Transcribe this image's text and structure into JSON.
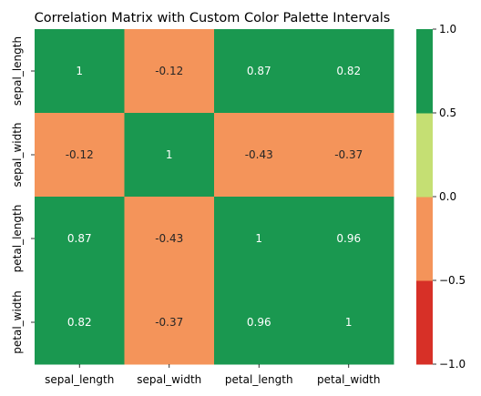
{
  "chart_data": {
    "type": "heatmap",
    "title": "Correlation Matrix with Custom Color Palette Intervals",
    "rows": [
      "sepal_length",
      "sepal_width",
      "petal_length",
      "petal_width"
    ],
    "columns": [
      "sepal_length",
      "sepal_width",
      "petal_length",
      "petal_width"
    ],
    "values": [
      [
        1,
        -0.12,
        0.87,
        0.82
      ],
      [
        -0.12,
        1,
        -0.43,
        -0.37
      ],
      [
        0.87,
        -0.43,
        1,
        0.96
      ],
      [
        0.82,
        -0.37,
        0.96,
        1
      ]
    ],
    "cell_labels": [
      [
        "1",
        "-0.12",
        "0.87",
        "0.82"
      ],
      [
        "-0.12",
        "1",
        "-0.43",
        "-0.37"
      ],
      [
        "0.87",
        "-0.43",
        "1",
        "0.96"
      ],
      [
        "0.82",
        "-0.37",
        "0.96",
        "1"
      ]
    ],
    "colorbar": {
      "range": [
        -1.0,
        1.0
      ],
      "bins": [
        {
          "min": -1.0,
          "max": -0.5,
          "color": "#d73027"
        },
        {
          "min": -0.5,
          "max": 0.0,
          "color": "#f4945a"
        },
        {
          "min": 0.0,
          "max": 0.5,
          "color": "#c5df73"
        },
        {
          "min": 0.5,
          "max": 1.0,
          "color": "#1a9850"
        }
      ],
      "ticks": [
        {
          "value": 1.0,
          "label": "1.0"
        },
        {
          "value": 0.5,
          "label": "0.5"
        },
        {
          "value": 0.0,
          "label": "0.0"
        },
        {
          "value": -0.5,
          "label": "−0.5"
        },
        {
          "value": -1.0,
          "label": "−1.0"
        }
      ]
    },
    "text_colors": {
      "on_dark": "#ffffff",
      "on_light": "#262626"
    }
  }
}
